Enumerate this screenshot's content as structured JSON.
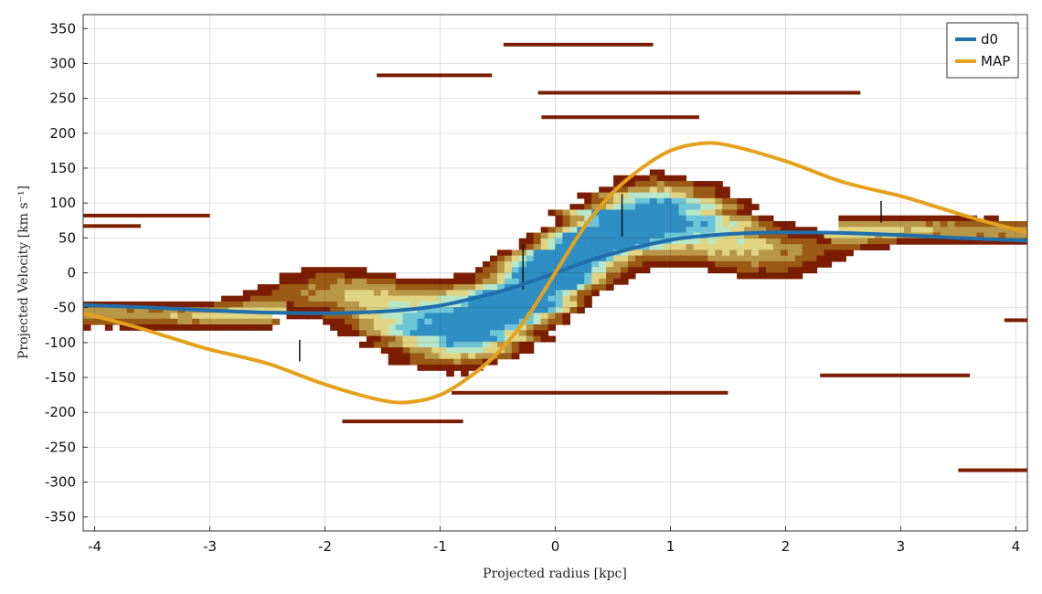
{
  "chart_data": {
    "type": "line",
    "xlabel": "Projected radius [kpc]",
    "ylabel": "Projected Velocity [km s⁻¹]",
    "xlim": [
      -4.1,
      4.1
    ],
    "ylim": [
      -370,
      370
    ],
    "x_ticks": [
      -4,
      -3,
      -2,
      -1,
      0,
      1,
      2,
      3,
      4
    ],
    "y_ticks": [
      350,
      300,
      250,
      200,
      150,
      100,
      50,
      0,
      -50,
      -100,
      -150,
      -200,
      -250,
      -300,
      -350
    ],
    "grid": true,
    "legend_position": "top-right",
    "series": [
      {
        "name": "d0",
        "color": "#1f6fad",
        "x": [
          -4.1,
          -3.5,
          -3.0,
          -2.5,
          -2.0,
          -1.8,
          -1.5,
          -1.2,
          -1.0,
          -0.8,
          -0.6,
          -0.4,
          -0.2,
          0.0,
          0.2,
          0.4,
          0.6,
          0.8,
          1.0,
          1.2,
          1.5,
          1.8,
          2.0,
          2.5,
          3.0,
          3.5,
          4.1
        ],
        "y": [
          -46,
          -50,
          -54,
          -57,
          -58,
          -57.5,
          -55.5,
          -51.5,
          -47,
          -40,
          -32,
          -23,
          -12,
          0,
          12,
          23,
          32,
          40,
          47,
          51.5,
          55.5,
          57.5,
          58,
          57,
          54,
          50,
          46
        ]
      },
      {
        "name": "MAP",
        "color": "#e5a11c",
        "x": [
          -4.1,
          -3.7,
          -3.3,
          -3.0,
          -2.5,
          -2.0,
          -1.5,
          -1.25,
          -1.0,
          -0.75,
          -0.5,
          -0.25,
          0.0,
          0.25,
          0.5,
          0.75,
          1.0,
          1.25,
          1.5,
          2.0,
          2.5,
          3.0,
          3.3,
          3.7,
          4.1
        ],
        "y": [
          -58,
          -75,
          -95,
          -110,
          -130,
          -160,
          -183,
          -185,
          -175,
          -150,
          -115,
          -65,
          0,
          65,
          115,
          150,
          175,
          185,
          183,
          160,
          130,
          110,
          95,
          75,
          58
        ]
      }
    ],
    "error_bars": [
      {
        "x": -2.22,
        "y_low": -127,
        "y_high": -96
      },
      {
        "x": -0.28,
        "y_low": -24,
        "y_high": 40
      },
      {
        "x": 0.58,
        "y_low": 52,
        "y_high": 113
      },
      {
        "x": 2.83,
        "y_low": 72,
        "y_high": 103
      }
    ],
    "background": "2D heatmap of line-of-sight velocity distribution (colormap: dark red → brown → tan → yellow → pale green → light blue → blue)"
  }
}
